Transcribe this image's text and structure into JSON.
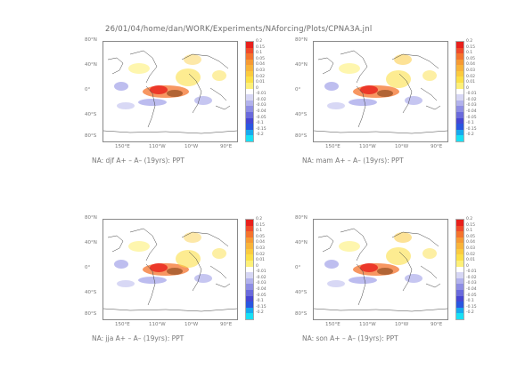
{
  "header": {
    "path": "26/01/04/home/dan/WORK/Experiments/NAforcing/Plots/CPNA3A.jnl"
  },
  "axes": {
    "lat_ticks": [
      "80°N",
      "40°N",
      "0°",
      "40°S",
      "80°S"
    ],
    "lon_ticks": [
      "150°E",
      "110°W",
      "10°W",
      "90°E"
    ]
  },
  "colorbar": {
    "levels": [
      "0.2",
      "0.15",
      "0.1",
      "0.05",
      "0.04",
      "0.03",
      "0.02",
      "0.01",
      "0",
      "-0.01",
      "-0.02",
      "-0.03",
      "-0.04",
      "-0.05",
      "-0.1",
      "-0.15",
      "-0.2"
    ],
    "colors": [
      "#e8201c",
      "#f04a2a",
      "#f4742e",
      "#f69a34",
      "#f8b43a",
      "#fbcb3f",
      "#fce048",
      "#fdf078",
      "#ffffff",
      "#d6d6f4",
      "#b2b2ec",
      "#8e8ee4",
      "#6a6adc",
      "#4646d2",
      "#2a56e0",
      "#18a8ee",
      "#18e0f4"
    ]
  },
  "panels": [
    {
      "id": "djf",
      "caption": "NA: djf A+ – A– (19yrs): PPT"
    },
    {
      "id": "mam",
      "caption": "NA: mam A+ – A– (19yrs): PPT"
    },
    {
      "id": "jja",
      "caption": "NA: jja A+ – A– (19yrs): PPT"
    },
    {
      "id": "son",
      "caption": "NA: son A+ – A– (19yrs): PPT"
    }
  ]
}
